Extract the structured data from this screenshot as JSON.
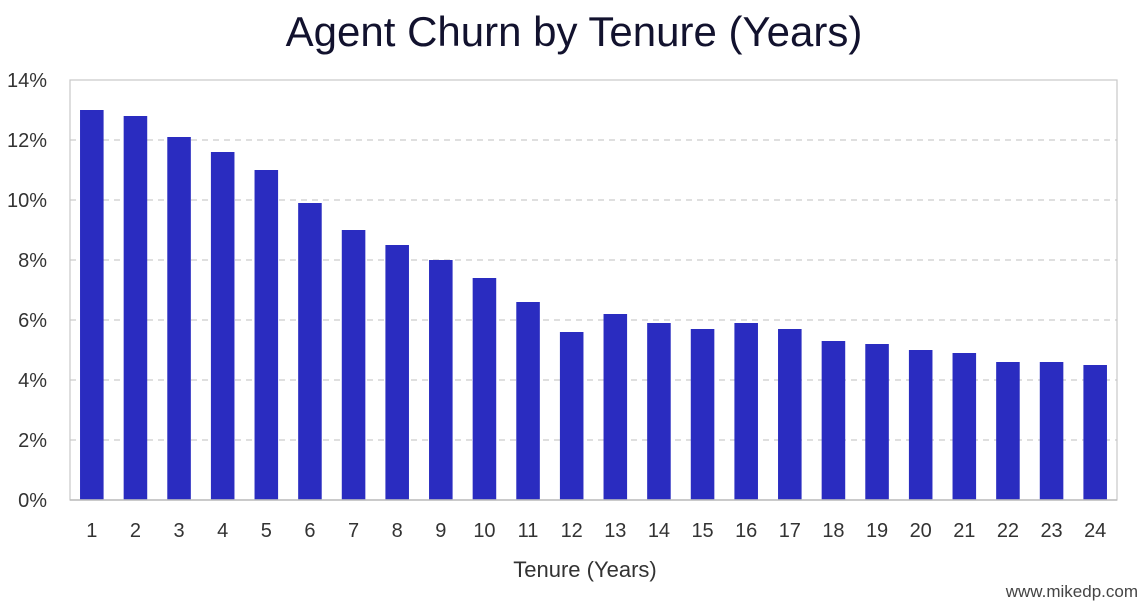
{
  "chart_data": {
    "type": "bar",
    "title": "Agent Churn by Tenure (Years)",
    "xlabel": "Tenure (Years)",
    "ylabel": "",
    "categories": [
      "1",
      "2",
      "3",
      "4",
      "5",
      "6",
      "7",
      "8",
      "9",
      "10",
      "11",
      "12",
      "13",
      "14",
      "15",
      "16",
      "17",
      "18",
      "19",
      "20",
      "21",
      "22",
      "23",
      "24"
    ],
    "values": [
      13.0,
      12.8,
      12.1,
      11.6,
      11.0,
      9.9,
      9.0,
      8.5,
      8.0,
      7.4,
      6.6,
      5.6,
      6.2,
      5.9,
      5.7,
      5.9,
      5.7,
      5.3,
      5.2,
      5.0,
      4.9,
      4.6,
      4.6,
      4.5
    ],
    "value_unit": "%",
    "ylim": [
      0,
      14
    ],
    "yticks": [
      "0%",
      "2%",
      "4%",
      "6%",
      "8%",
      "10%",
      "12%",
      "14%"
    ],
    "grid": true,
    "bar_color": "#2a2cc0",
    "grid_color": "#cccccc"
  },
  "footer": {
    "watermark": "www.mikedp.com"
  }
}
